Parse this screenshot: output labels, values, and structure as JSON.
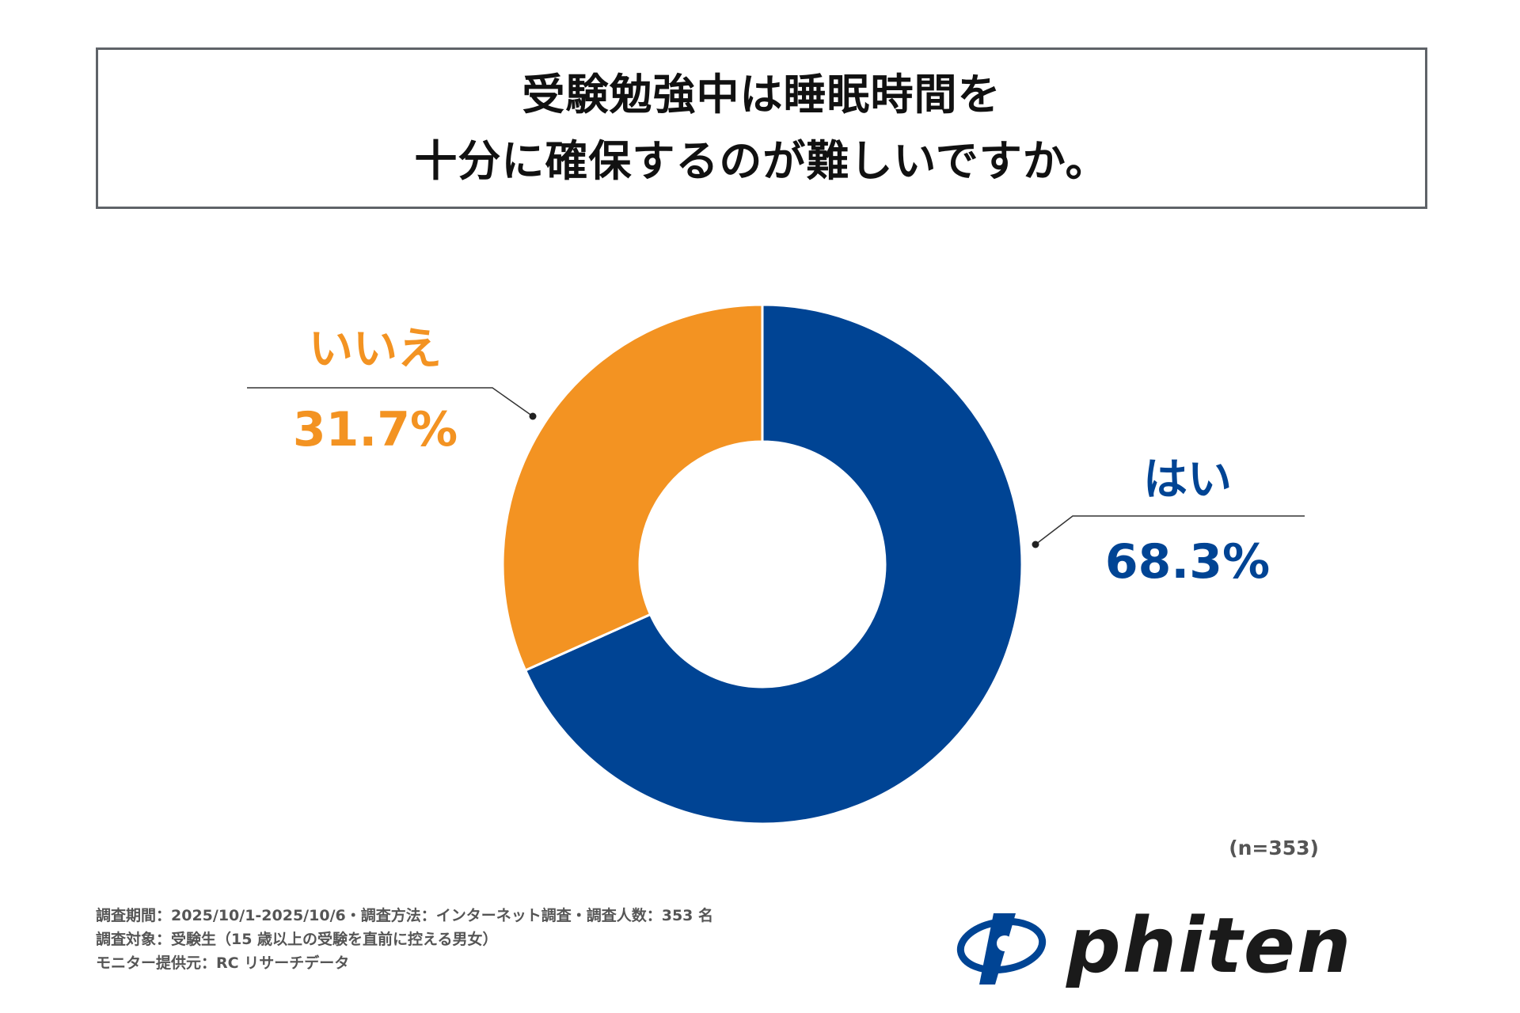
{
  "title": {
    "line1": "受験勉強中は睡眠時間を",
    "line2": "十分に確保するのが難しいですか。"
  },
  "chart_data": {
    "type": "pie",
    "donut": true,
    "labels": [
      "はい",
      "いいえ"
    ],
    "values": [
      68.3,
      31.7
    ],
    "value_labels": [
      "68.3%",
      "31.7%"
    ],
    "colors": [
      "#004494",
      "#f39322"
    ]
  },
  "sample_size": "(n=353)",
  "notes": [
    "調査期間：2025/10/1-2025/10/6・調査方法：インターネット調査・調査人数：353 名",
    "調査対象：受験生（15 歳以上の受験を直前に控える男女）",
    "モニター提供元：RC リサーチデータ"
  ],
  "logo": {
    "icon": "phiten-logo-mark",
    "text": "phiten",
    "color": "#004494",
    "text_color": "#1a1a1a"
  }
}
